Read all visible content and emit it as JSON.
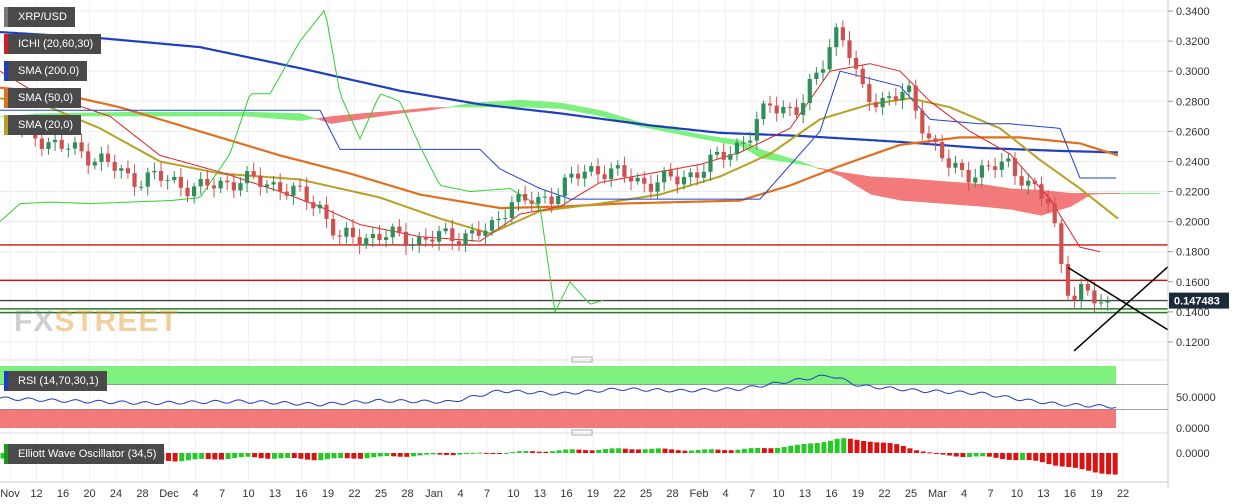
{
  "chart_data": {
    "type": "candlestick",
    "symbol": "XRP/USD",
    "indicators": [
      {
        "name": "ICHI (20,60,30)",
        "color": "#c0392b"
      },
      {
        "name": "SMA (200,0)",
        "color": "#1f3fbf"
      },
      {
        "name": "SMA (50,0)",
        "color": "#e07020"
      },
      {
        "name": "SMA (20,0)",
        "color": "#b8a020"
      }
    ],
    "last_price_label": "0.147483",
    "ylim": [
      0.11,
      0.346
    ],
    "y_ticks": [
      "0.3400",
      "0.3200",
      "0.3000",
      "0.2800",
      "0.2600",
      "0.2400",
      "0.2200",
      "0.2000",
      "0.1800",
      "0.1600",
      "0.1400",
      "0.1200"
    ],
    "y_tick_values": [
      0.34,
      0.32,
      0.3,
      0.28,
      0.26,
      0.24,
      0.22,
      0.2,
      0.18,
      0.16,
      0.14,
      0.12
    ],
    "x_ticks": [
      "Nov",
      "12",
      "16",
      "20",
      "24",
      "28",
      "Dec",
      "4",
      "7",
      "10",
      "13",
      "16",
      "19",
      "22",
      "25",
      "28",
      "Jan",
      "4",
      "7",
      "10",
      "13",
      "16",
      "19",
      "22",
      "25",
      "28",
      "Feb",
      "4",
      "7",
      "10",
      "13",
      "16",
      "19",
      "22",
      "25",
      "Mar",
      "4",
      "7",
      "10",
      "13",
      "16",
      "19",
      "22"
    ],
    "horizontal_levels": [
      {
        "value": 0.1845,
        "color": "#d01010"
      },
      {
        "value": 0.161,
        "color": "#d01010"
      },
      {
        "value": 0.1475,
        "color": "#444444"
      },
      {
        "value": 0.142,
        "color": "#2a7a2a"
      },
      {
        "value": 0.1395,
        "color": "#2a7a2a"
      }
    ],
    "rsi": {
      "name": "RSI (14,70,30,1)",
      "ticks": [
        "50.0000",
        "0.0000"
      ],
      "tick_values": [
        50,
        0
      ],
      "ylim": [
        0,
        100
      ]
    },
    "ewo": {
      "name": "Elliott Wave Oscillator (34,5)",
      "ticks": [
        "0.0000"
      ],
      "tick_values": [
        0
      ]
    }
  },
  "watermark": {
    "part1": "FX",
    "part2": "STREET"
  },
  "colors": {
    "up": "#2f8f5a",
    "down": "#d05050",
    "kumo_bull": "#7ef07e",
    "kumo_bear": "#f27a7a"
  }
}
